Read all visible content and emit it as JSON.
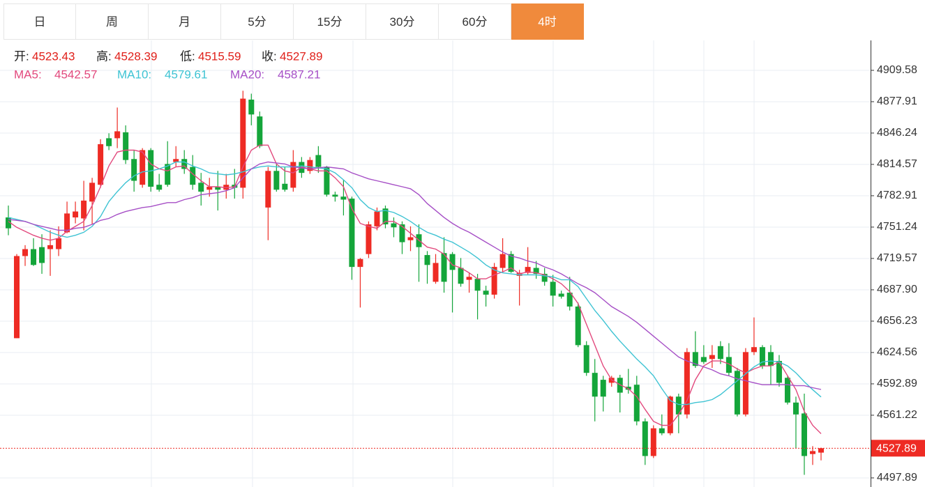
{
  "tabs": [
    "日",
    "周",
    "月",
    "5分",
    "15分",
    "30分",
    "60分",
    "4时"
  ],
  "active_tab": 7,
  "chart_data": {
    "type": "candlestick",
    "header_labels": [
      "开:",
      "高:",
      "低:",
      "收:"
    ],
    "up_color": "#ee2b24",
    "down_color": "#14a53a",
    "open": [
      4761,
      4639,
      4722,
      4729,
      4731,
      4729,
      4729,
      4746,
      4761,
      4760,
      4777,
      4794,
      4841,
      4841,
      4847,
      4820,
      4794,
      4829,
      4794,
      4815,
      4817,
      4820,
      4812,
      4796,
      4789,
      4792,
      4789,
      4794,
      4791,
      4880,
      4863,
      4771,
      4808,
      4795,
      4791,
      4817,
      4808,
      4824,
      4812,
      4784,
      4782,
      4780,
      4711,
      4724,
      4752,
      4770,
      4755,
      4754,
      4738,
      4744,
      4723,
      4696,
      4725,
      4724,
      4710,
      4698,
      4699,
      4687,
      4683,
      4710,
      4724,
      4702,
      4705,
      4710,
      4704,
      4696,
      4684,
      4685,
      4671,
      4632,
      4604,
      4597,
      4594,
      4599,
      4590,
      4592,
      4555,
      4520,
      4548,
      4543,
      4580,
      4562,
      4625,
      4620,
      4618,
      4631,
      4620,
      4606,
      4562,
      4625,
      4630,
      4625,
      4616,
      4599,
      4574,
      4563,
      4522,
      4523.43
    ],
    "high": [
      4773,
      4724,
      4733,
      4740,
      4744,
      4748,
      4752,
      4777,
      4777,
      4798,
      4801,
      4840,
      4846,
      4872,
      4854,
      4829,
      4831,
      4831,
      4805,
      4838,
      4833,
      4829,
      4824,
      4806,
      4801,
      4808,
      4805,
      4810,
      4889,
      4886,
      4868,
      4812,
      4815,
      4812,
      4829,
      4822,
      4822,
      4833,
      4813,
      4787,
      4799,
      4782,
      4720,
      4757,
      4771,
      4773,
      4761,
      4757,
      4752,
      4754,
      4727,
      4724,
      4741,
      4726,
      4720,
      4705,
      4704,
      4692,
      4715,
      4740,
      4727,
      4708,
      4731,
      4717,
      4710,
      4703,
      4687,
      4701,
      4675,
      4636,
      4618,
      4601,
      4601,
      4602,
      4608,
      4601,
      4558,
      4551,
      4562,
      4581,
      4583,
      4629,
      4646,
      4632,
      4632,
      4636,
      4634,
      4609,
      4629,
      4660,
      4632,
      4632,
      4622,
      4601,
      4580,
      4583,
      4530,
      4528.39
    ],
    "low": [
      4743,
      4639,
      4712,
      4712,
      4704,
      4702,
      4722,
      4745,
      4755,
      4748,
      4754,
      4791,
      4829,
      4831,
      4815,
      4787,
      4791,
      4787,
      4787,
      4792,
      4812,
      4805,
      4789,
      4773,
      4782,
      4768,
      4780,
      4780,
      4780,
      4854,
      4831,
      4738,
      4787,
      4787,
      4787,
      4801,
      4805,
      4806,
      4782,
      4777,
      4763,
      4698,
      4670,
      4720,
      4748,
      4750,
      4741,
      4724,
      4727,
      4696,
      4694,
      4694,
      4685,
      4665,
      4691,
      4685,
      4658,
      4671,
      4679,
      4706,
      4705,
      4672,
      4703,
      4699,
      4692,
      4671,
      4679,
      4667,
      4630,
      4601,
      4555,
      4565,
      4590,
      4564,
      4583,
      4551,
      4511,
      4518,
      4541,
      4541,
      4543,
      4558,
      4609,
      4613,
      4609,
      4613,
      4601,
      4560,
      4560,
      4622,
      4608,
      4592,
      4590,
      4572,
      4528,
      4501,
      4511,
      4515.59
    ],
    "close": [
      4750,
      4722,
      4729,
      4713,
      4715,
      4733,
      4740,
      4765,
      4767,
      4778,
      4796,
      4835,
      4833,
      4848,
      4819,
      4798,
      4829,
      4792,
      4789,
      4794,
      4820,
      4810,
      4794,
      4787,
      4792,
      4789,
      4794,
      4791,
      4881,
      4865,
      4833,
      4808,
      4789,
      4789,
      4817,
      4806,
      4819,
      4812,
      4784,
      4782,
      4779,
      4711,
      4719,
      4754,
      4767,
      4754,
      4751,
      4736,
      4741,
      4731,
      4713,
      4715,
      4696,
      4708,
      4694,
      4701,
      4687,
      4683,
      4711,
      4724,
      4706,
      4705,
      4711,
      4704,
      4696,
      4682,
      4681,
      4671,
      4632,
      4604,
      4580,
      4580,
      4599,
      4584,
      4587,
      4555,
      4520,
      4548,
      4543,
      4580,
      4562,
      4625,
      4611,
      4615,
      4622,
      4618,
      4604,
      4562,
      4625,
      4630,
      4611,
      4611,
      4594,
      4574,
      4562,
      4520,
      4525,
      4527.89
    ],
    "series": [
      {
        "name": "MA5:",
        "color": "#e2497d",
        "values": [
          4757,
          4751,
          4747,
          4743,
          4740,
          4738,
          4740,
          4747,
          4752,
          4757,
          4773,
          4792,
          4813,
          4827,
          4829,
          4829,
          4827,
          4815,
          4810,
          4808,
          4812,
          4813,
          4805,
          4798,
          4792,
          4792,
          4791,
          4792,
          4812,
          4829,
          4834,
          4834,
          4815,
          4808,
          4806,
          4812,
          4810,
          4808,
          4808,
          4801,
          4792,
          4770,
          4755,
          4752,
          4750,
          4757,
          4757,
          4752,
          4745,
          4738,
          4731,
          4729,
          4724,
          4713,
          4710,
          4705,
          4699,
          4699,
          4703,
          4706,
          4710,
          4704,
          4706,
          4705,
          4703,
          4699,
          4694,
          4686,
          4674,
          4653,
          4632,
          4611,
          4597,
          4592,
          4588,
          4580,
          4567,
          4555,
          4551,
          4551,
          4562,
          4576,
          4597,
          4611,
          4616,
          4616,
          4613,
          4608,
          4604,
          4608,
          4611,
          4611,
          4615,
          4601,
          4587,
          4565,
          4551,
          4542.57
        ]
      },
      {
        "name": "MA10:",
        "color": "#3ec3d3",
        "values": [
          4761,
          4759,
          4757,
          4754,
          4750,
          4746,
          4743,
          4741,
          4743,
          4746,
          4752,
          4762,
          4777,
          4787,
          4796,
          4803,
          4807,
          4808,
          4810,
          4813,
          4817,
          4817,
          4813,
          4810,
          4806,
          4805,
          4804,
          4805,
          4807,
          4810,
          4812,
          4813,
          4812,
          4812,
          4812,
          4813,
          4812,
          4811,
          4810,
          4806,
          4799,
          4791,
          4779,
          4771,
          4767,
          4768,
          4766,
          4762,
          4757,
          4751,
          4746,
          4743,
          4739,
          4736,
          4731,
          4726,
          4720,
          4713,
          4708,
          4705,
          4704,
          4703,
          4703,
          4703,
          4702,
          4701,
          4698,
          4698,
          4691,
          4679,
          4667,
          4657,
          4646,
          4636,
          4627,
          4618,
          4610,
          4601,
          4588,
          4576,
          4572,
          4572,
          4574,
          4575,
          4577,
          4582,
          4589,
          4596,
          4603,
          4610,
          4615,
          4616,
          4615,
          4611,
          4604,
          4595,
          4587,
          4579.61
        ]
      },
      {
        "name": "MA20:",
        "color": "#a64fc6",
        "values": [
          4759,
          4758,
          4757,
          4754,
          4752,
          4750,
          4748,
          4748,
          4750,
          4751,
          4754,
          4758,
          4760,
          4764,
          4767,
          4769,
          4771,
          4772,
          4774,
          4776,
          4776,
          4779,
          4781,
          4784,
          4785,
          4786,
          4788,
          4791,
          4801,
          4810,
          4815,
          4817,
          4816,
          4815,
          4812,
          4811,
          4810,
          4811,
          4812,
          4811,
          4810,
          4806,
          4803,
          4800,
          4798,
          4796,
          4794,
          4792,
          4790,
          4784,
          4775,
          4768,
          4761,
          4755,
          4750,
          4746,
          4741,
          4736,
          4731,
          4726,
          4722,
          4720,
          4717,
          4715,
          4711,
          4708,
          4704,
          4699,
          4694,
          4690,
          4685,
          4678,
          4671,
          4666,
          4661,
          4655,
          4648,
          4641,
          4634,
          4627,
          4620,
          4616,
          4613,
          4610,
          4607,
          4603,
          4601,
          4598,
          4596,
          4594,
          4592,
          4592,
          4592,
          4592,
          4591,
          4591,
          4589,
          4587.21
        ]
      }
    ],
    "ylim": [
      4488.7,
      4938.4
    ],
    "yticks": [
      4909.58,
      4877.91,
      4846.24,
      4814.57,
      4782.91,
      4751.24,
      4719.57,
      {
        "value": 4687.9,
        "label": "4687.90"
      },
      4656.23,
      4624.56,
      4592.89,
      4561.22,
      4497.89
    ],
    "grid": true
  }
}
